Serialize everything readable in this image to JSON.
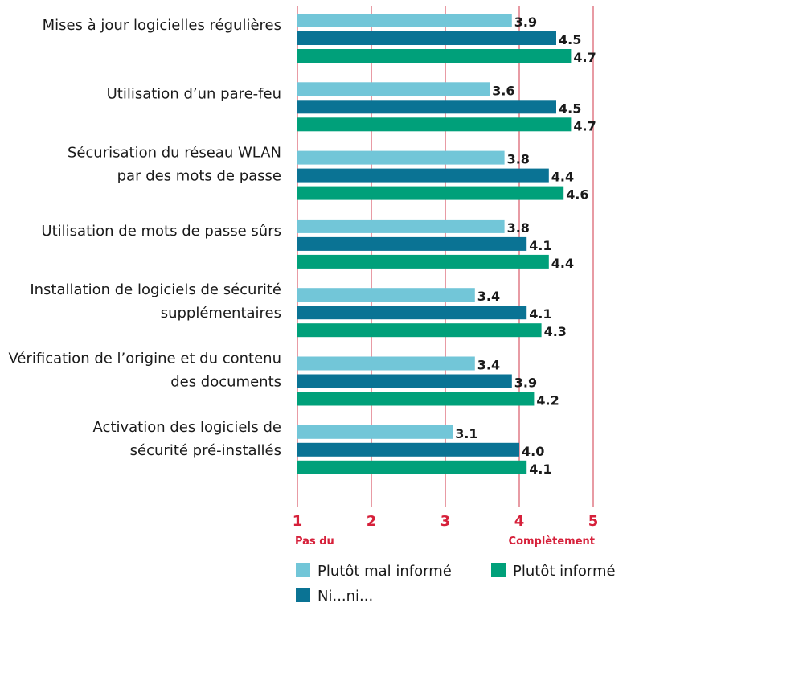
{
  "chart_data": {
    "type": "bar",
    "orientation": "horizontal",
    "categories": [
      [
        "Mises à jour logicielles régulières"
      ],
      [
        "Utilisation d’un pare-feu"
      ],
      [
        "Sécurisation du réseau WLAN",
        "par des mots de passe"
      ],
      [
        "Utilisation de mots de passe sûrs"
      ],
      [
        "Installation de logiciels de sécurité",
        "supplémentaires"
      ],
      [
        "Vérification de l’origine et du contenu",
        "des documents"
      ],
      [
        "Activation des logiciels de",
        "sécurité pré-installés"
      ]
    ],
    "series": [
      {
        "name": "Plutôt mal informé",
        "color": "#72c6d8",
        "values": [
          3.9,
          3.6,
          3.8,
          3.8,
          3.4,
          3.4,
          3.1
        ]
      },
      {
        "name": "Ni...ni...",
        "color": "#0a7394",
        "values": [
          4.5,
          4.5,
          4.4,
          4.1,
          4.1,
          3.9,
          4.0
        ]
      },
      {
        "name": "Plutôt informé",
        "color": "#00a07a",
        "values": [
          4.7,
          4.7,
          4.6,
          4.4,
          4.3,
          4.2,
          4.1
        ]
      }
    ],
    "value_labels": [
      [
        "3.9",
        "3.6",
        "3.8",
        "3.8",
        "3.4",
        "3.4",
        "3.1"
      ],
      [
        "4.5",
        "4.5",
        "4.4",
        "4.1",
        "4.1",
        "3.9",
        "4.0"
      ],
      [
        "4.7",
        "4.7",
        "4.6",
        "4.4",
        "4.3",
        "4.2",
        "4.1"
      ]
    ],
    "x_ticks": [
      1,
      2,
      3,
      4,
      5
    ],
    "x_tick_labels": [
      "1",
      "2",
      "3",
      "4",
      "5"
    ],
    "xlim": [
      1,
      5
    ],
    "x_low_label": "Pas du",
    "x_high_label": "Complètement",
    "grid": true,
    "grid_color": "#e07a85",
    "axis_label_color": "#d6203a",
    "legend_position": "bottom",
    "legend_order": [
      0,
      2,
      1
    ]
  }
}
